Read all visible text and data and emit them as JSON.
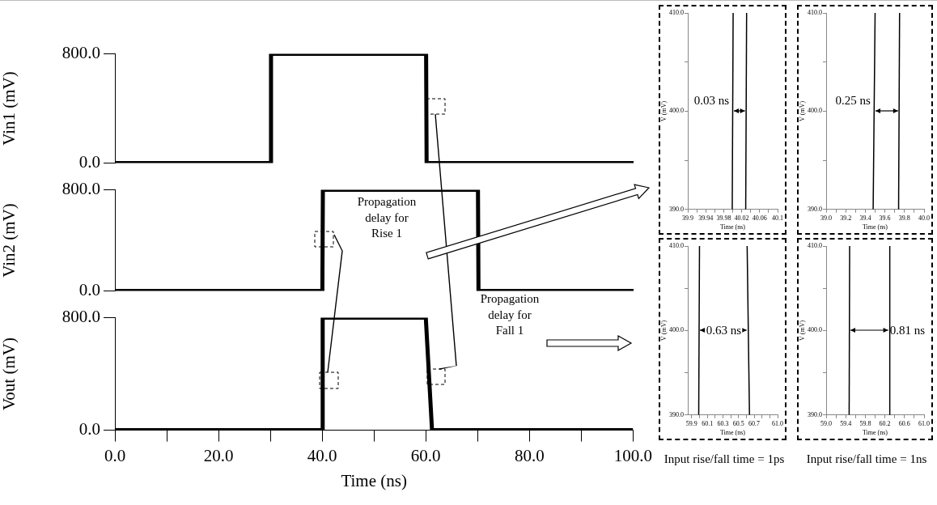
{
  "chart_data": [
    {
      "type": "line",
      "ylabel": "Vin1 (mV)",
      "xlim": [
        0,
        100
      ],
      "ylim": [
        0,
        800
      ],
      "yticks": [
        {
          "value": 0,
          "label": "0.0"
        },
        {
          "value": 800,
          "label": "800.0"
        }
      ],
      "tick_labels": "y",
      "series": [
        {
          "color": "#000000",
          "x": [
            0,
            30,
            30.1,
            60,
            60.1,
            100
          ],
          "values": [
            0,
            0,
            800,
            800,
            0,
            0
          ]
        }
      ]
    },
    {
      "type": "line",
      "ylabel": "Vin2 (mV)",
      "xlim": [
        0,
        100
      ],
      "ylim": [
        0,
        800
      ],
      "yticks": [
        {
          "value": 0,
          "label": "0.0"
        },
        {
          "value": 800,
          "label": "800.0"
        }
      ],
      "tick_labels": "y",
      "annotations": [
        "Propagation delay for Rise 1"
      ],
      "series": [
        {
          "color": "#000000",
          "x": [
            0,
            40,
            40.1,
            70,
            70.1,
            100
          ],
          "values": [
            0,
            0,
            800,
            800,
            0,
            0
          ]
        }
      ]
    },
    {
      "type": "line",
      "ylabel": "Vout (mV)",
      "xlabel": "Time (ns)",
      "xlim": [
        0,
        100
      ],
      "xticks": [
        {
          "value": 0,
          "label": "0.0"
        },
        {
          "value": 10,
          "label": null
        },
        {
          "value": 20,
          "label": "20.0"
        },
        {
          "value": 30,
          "label": null
        },
        {
          "value": 40,
          "label": "40.0"
        },
        {
          "value": 50,
          "label": null
        },
        {
          "value": 60,
          "label": "60.0"
        },
        {
          "value": 70,
          "label": null
        },
        {
          "value": 80,
          "label": "80.0"
        },
        {
          "value": 90,
          "label": null
        },
        {
          "value": 100,
          "label": "100.0"
        }
      ],
      "ylim": [
        0,
        800
      ],
      "yticks": [
        {
          "value": 0,
          "label": "0.0"
        },
        {
          "value": 800,
          "label": "800.0"
        }
      ],
      "annotations": [
        "Propagation delay for Fall 1"
      ],
      "series": [
        {
          "color": "#000000",
          "x": [
            0,
            40,
            40.1,
            60,
            61.2,
            100
          ],
          "values": [
            0,
            0,
            800,
            800,
            0,
            0
          ]
        }
      ]
    },
    {
      "type": "line",
      "xlabel": "Time (ns)",
      "ylabel": "V (mV)",
      "xlim": [
        39.9,
        40.1
      ],
      "xticks": [
        39.9,
        {
          "value": 39.92,
          "label": null
        },
        39.94,
        {
          "value": 39.96,
          "label": null
        },
        39.98,
        {
          "value": 40.0,
          "label": null
        },
        40.02,
        {
          "value": 40.04,
          "label": null
        },
        40.06,
        {
          "value": 40.08,
          "label": null
        },
        40.1
      ],
      "ylim": [
        390,
        410
      ],
      "yticks": [
        {
          "value": 390,
          "label": "390.0"
        },
        {
          "value": 395,
          "label": null
        },
        {
          "value": 400,
          "label": "400.0"
        },
        {
          "value": 405,
          "label": null
        },
        {
          "value": 410,
          "label": "410.0"
        }
      ],
      "annotations": [
        "0.03 ns"
      ],
      "series": [
        {
          "color": "#000000",
          "x": [
            39.999,
            40.001
          ],
          "values": [
            390,
            410
          ]
        },
        {
          "color": "#000000",
          "x": [
            40.029,
            40.031
          ],
          "values": [
            390,
            410
          ]
        }
      ]
    },
    {
      "type": "line",
      "xlabel": "Time (ns)",
      "ylabel": "V (mV)",
      "xlim": [
        39.0,
        40.0
      ],
      "xticks": [
        {
          "value": 39.0,
          "label": "39.0"
        },
        {
          "value": 39.1,
          "label": null
        },
        39.2,
        {
          "value": 39.3,
          "label": null
        },
        39.4,
        {
          "value": 39.5,
          "label": null
        },
        39.6,
        {
          "value": 39.7,
          "label": null
        },
        39.8,
        {
          "value": 39.9,
          "label": null
        },
        {
          "value": 40.0,
          "label": "40.0"
        }
      ],
      "ylim": [
        390,
        410
      ],
      "yticks": [
        {
          "value": 390,
          "label": "390.0"
        },
        {
          "value": 395,
          "label": null
        },
        {
          "value": 400,
          "label": "400.0"
        },
        {
          "value": 405,
          "label": null
        },
        {
          "value": 410,
          "label": "410.0"
        }
      ],
      "annotations": [
        "0.25 ns"
      ],
      "series": [
        {
          "color": "#000000",
          "x": [
            39.48,
            39.5
          ],
          "values": [
            390,
            410
          ]
        },
        {
          "color": "#000000",
          "x": [
            39.74,
            39.75
          ],
          "values": [
            390,
            410
          ]
        }
      ]
    },
    {
      "type": "line",
      "xlabel": "Time (ns)",
      "ylabel": "V (mV)",
      "xlim": [
        59.85,
        61.0
      ],
      "xticks": [
        59.9,
        {
          "value": 60.0,
          "label": null
        },
        60.1,
        {
          "value": 60.2,
          "label": null
        },
        60.3,
        {
          "value": 60.4,
          "label": null
        },
        60.5,
        {
          "value": 60.6,
          "label": null
        },
        60.7,
        {
          "value": 60.8,
          "label": null
        },
        {
          "value": 60.9,
          "label": null
        },
        {
          "value": 61.0,
          "label": "61.0"
        }
      ],
      "ylim": [
        390,
        410
      ],
      "yticks": [
        {
          "value": 390,
          "label": "390.0"
        },
        {
          "value": 395,
          "label": null
        },
        {
          "value": 400,
          "label": "400.0"
        },
        {
          "value": 405,
          "label": null
        },
        {
          "value": 410,
          "label": "410.0"
        }
      ],
      "annotations": [
        "0.63 ns",
        "Input rise/fall time = 1ps"
      ],
      "series": [
        {
          "color": "#000000",
          "x": [
            59.99,
            60.0
          ],
          "values": [
            390,
            410
          ]
        },
        {
          "color": "#000000",
          "x": [
            60.64,
            60.61
          ],
          "values": [
            390,
            410
          ]
        }
      ]
    },
    {
      "type": "line",
      "xlabel": "Time (ns)",
      "ylabel": "V (mV)",
      "xlim": [
        59.0,
        61.0
      ],
      "xticks": [
        {
          "value": 59.0,
          "label": "59.0"
        },
        {
          "value": 59.2,
          "label": null
        },
        59.4,
        {
          "value": 59.6,
          "label": null
        },
        59.8,
        {
          "value": 60.0,
          "label": null
        },
        60.2,
        {
          "value": 60.4,
          "label": null
        },
        60.6,
        {
          "value": 60.8,
          "label": null
        },
        {
          "value": 61.0,
          "label": "61.0"
        }
      ],
      "ylim": [
        390,
        410
      ],
      "yticks": [
        {
          "value": 390,
          "label": "390.0"
        },
        {
          "value": 395,
          "label": null
        },
        {
          "value": 400,
          "label": "400.0"
        },
        {
          "value": 405,
          "label": null
        },
        {
          "value": 410,
          "label": "410.0"
        }
      ],
      "annotations": [
        "0.81 ns",
        "Input rise/fall time = 1ns"
      ],
      "series": [
        {
          "color": "#000000",
          "x": [
            59.47,
            59.48
          ],
          "values": [
            390,
            410
          ]
        },
        {
          "color": "#000000",
          "x": [
            60.29,
            60.3
          ],
          "values": [
            390,
            410
          ]
        }
      ]
    }
  ]
}
